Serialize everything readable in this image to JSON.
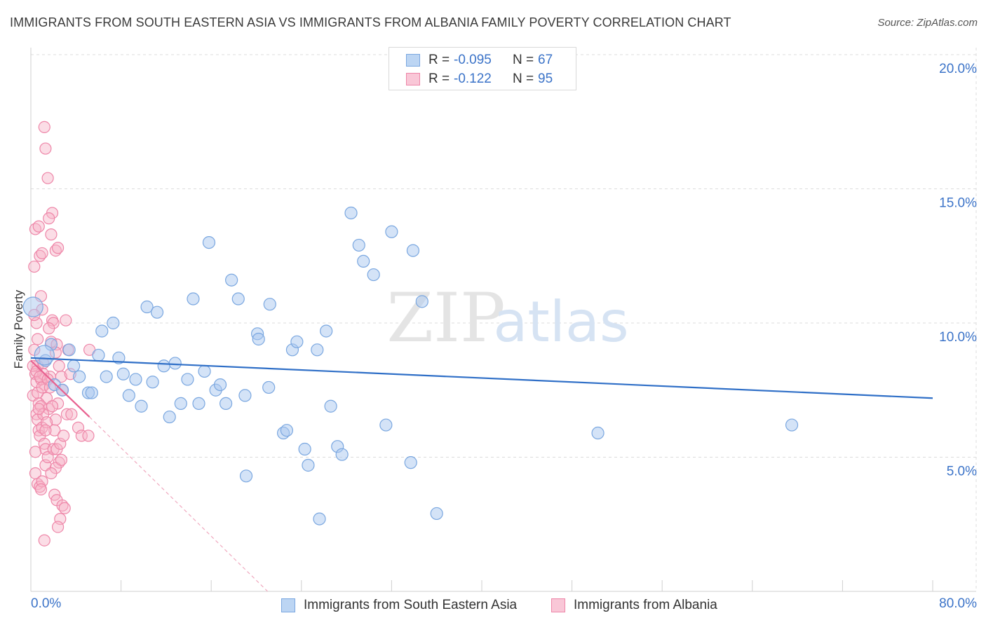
{
  "title": "IMMIGRANTS FROM SOUTH EASTERN ASIA VS IMMIGRANTS FROM ALBANIA FAMILY POVERTY CORRELATION CHART",
  "source": "Source: ZipAtlas.com",
  "watermark": {
    "zip": "ZIP",
    "atlas": "atlas"
  },
  "legend": {
    "rows": [
      {
        "r_label": "R =",
        "r_value": "-0.095",
        "n_label": "N =",
        "n_value": "67"
      },
      {
        "r_label": "R =",
        "r_value": "-0.122",
        "n_label": "N =",
        "n_value": "95"
      }
    ]
  },
  "bottom_legend": {
    "series1": "Immigrants from South Eastern Asia",
    "series2": "Immigrants from Albania"
  },
  "colors": {
    "blue_fill": "#a9c8ef",
    "blue_stroke": "#7aa7e0",
    "blue_line": "#2f6fc7",
    "pink_fill": "#f6b3c8",
    "pink_stroke": "#ee86a8",
    "pink_line": "#e8608f",
    "grid": "#dcdcdc",
    "axis_label": "#3b73c8"
  },
  "chart_data": {
    "type": "scatter",
    "title": "IMMIGRANTS FROM SOUTH EASTERN ASIA VS IMMIGRANTS FROM ALBANIA FAMILY POVERTY CORRELATION CHART",
    "xlabel": "",
    "ylabel": "Family Poverty",
    "xlim": [
      0,
      80
    ],
    "ylim": [
      0,
      20
    ],
    "x_tick_labels": [
      "0.0%",
      "80.0%"
    ],
    "y_ticks": [
      5,
      10,
      15,
      20
    ],
    "y_tick_labels": [
      "5.0%",
      "10.0%",
      "15.0%",
      "20.0%"
    ],
    "grid": "horizontal dashed",
    "legend_position": "top-center",
    "series": [
      {
        "name": "Immigrants from South Eastern Asia",
        "r": -0.095,
        "n": 67,
        "trend": {
          "x": [
            0,
            80
          ],
          "y": [
            8.7,
            7.2
          ]
        },
        "points": [
          [
            0.2,
            10.6
          ],
          [
            1.3,
            8.6
          ],
          [
            1.8,
            9.2
          ],
          [
            2.1,
            7.7
          ],
          [
            2.8,
            7.5
          ],
          [
            3.4,
            9.0
          ],
          [
            3.8,
            8.4
          ],
          [
            4.3,
            8.0
          ],
          [
            5.1,
            7.4
          ],
          [
            5.4,
            7.4
          ],
          [
            6.0,
            8.8
          ],
          [
            6.3,
            9.7
          ],
          [
            6.7,
            8.0
          ],
          [
            7.3,
            10.0
          ],
          [
            7.8,
            8.7
          ],
          [
            8.2,
            8.1
          ],
          [
            8.7,
            7.3
          ],
          [
            9.3,
            7.9
          ],
          [
            9.8,
            6.9
          ],
          [
            10.3,
            10.6
          ],
          [
            10.8,
            7.8
          ],
          [
            11.2,
            10.4
          ],
          [
            11.8,
            8.4
          ],
          [
            12.3,
            6.5
          ],
          [
            12.8,
            8.5
          ],
          [
            13.3,
            7.0
          ],
          [
            13.9,
            7.9
          ],
          [
            14.4,
            10.9
          ],
          [
            14.9,
            7.0
          ],
          [
            15.4,
            8.2
          ],
          [
            15.8,
            13.0
          ],
          [
            16.4,
            7.5
          ],
          [
            16.8,
            7.7
          ],
          [
            17.3,
            7.0
          ],
          [
            17.8,
            11.6
          ],
          [
            18.4,
            10.9
          ],
          [
            19.0,
            7.3
          ],
          [
            19.1,
            4.3
          ],
          [
            20.1,
            9.6
          ],
          [
            20.2,
            9.4
          ],
          [
            21.1,
            7.6
          ],
          [
            21.2,
            10.7
          ],
          [
            22.4,
            5.9
          ],
          [
            22.7,
            6.0
          ],
          [
            23.2,
            9.0
          ],
          [
            23.6,
            9.3
          ],
          [
            24.3,
            5.3
          ],
          [
            24.6,
            4.7
          ],
          [
            25.4,
            9.0
          ],
          [
            25.6,
            2.7
          ],
          [
            26.2,
            9.7
          ],
          [
            26.6,
            6.9
          ],
          [
            27.2,
            5.4
          ],
          [
            27.6,
            5.1
          ],
          [
            28.4,
            14.1
          ],
          [
            29.1,
            12.9
          ],
          [
            29.5,
            12.3
          ],
          [
            30.4,
            11.8
          ],
          [
            31.5,
            6.2
          ],
          [
            32.0,
            13.4
          ],
          [
            33.7,
            4.8
          ],
          [
            33.9,
            12.7
          ],
          [
            34.7,
            10.8
          ],
          [
            36.0,
            2.9
          ],
          [
            50.3,
            5.9
          ],
          [
            67.5,
            6.2
          ],
          [
            1.2,
            8.8
          ]
        ]
      },
      {
        "name": "Immigrants from Albania",
        "r": -0.122,
        "n": 95,
        "trend": {
          "x": [
            0,
            5.2
          ],
          "y": [
            8.6,
            6.5
          ]
        },
        "trend_extension": {
          "x": [
            5.2,
            21.0
          ],
          "y": [
            6.5,
            0.0
          ]
        },
        "points": [
          [
            0.3,
            12.1
          ],
          [
            0.4,
            13.5
          ],
          [
            0.5,
            10.0
          ],
          [
            0.6,
            8.4
          ],
          [
            0.7,
            13.6
          ],
          [
            0.8,
            12.5
          ],
          [
            0.9,
            11.0
          ],
          [
            1.0,
            10.5
          ],
          [
            1.1,
            8.5
          ],
          [
            1.2,
            7.7
          ],
          [
            0.2,
            7.3
          ],
          [
            0.5,
            6.6
          ],
          [
            0.6,
            6.4
          ],
          [
            0.7,
            6.0
          ],
          [
            0.8,
            5.8
          ],
          [
            1.0,
            6.1
          ],
          [
            1.2,
            5.5
          ],
          [
            1.3,
            4.7
          ],
          [
            0.4,
            4.4
          ],
          [
            0.6,
            4.0
          ],
          [
            0.8,
            3.9
          ],
          [
            1.0,
            4.1
          ],
          [
            1.3,
            5.3
          ],
          [
            1.5,
            5.0
          ],
          [
            1.6,
            6.8
          ],
          [
            1.4,
            7.2
          ],
          [
            1.7,
            8.0
          ],
          [
            1.8,
            9.3
          ],
          [
            1.9,
            10.1
          ],
          [
            2.0,
            10.0
          ],
          [
            2.2,
            12.7
          ],
          [
            2.4,
            12.8
          ],
          [
            1.8,
            13.3
          ],
          [
            1.9,
            14.1
          ],
          [
            1.6,
            13.9
          ],
          [
            1.5,
            15.4
          ],
          [
            1.3,
            16.5
          ],
          [
            1.2,
            17.3
          ],
          [
            2.3,
            9.2
          ],
          [
            2.5,
            8.4
          ],
          [
            2.7,
            8.0
          ],
          [
            2.8,
            7.5
          ],
          [
            2.4,
            7.0
          ],
          [
            2.2,
            6.4
          ],
          [
            2.1,
            6.0
          ],
          [
            2.0,
            5.3
          ],
          [
            2.3,
            5.3
          ],
          [
            2.5,
            4.8
          ],
          [
            2.6,
            5.5
          ],
          [
            2.2,
            4.6
          ],
          [
            2.1,
            3.6
          ],
          [
            2.3,
            3.4
          ],
          [
            2.6,
            2.7
          ],
          [
            2.8,
            3.2
          ],
          [
            2.4,
            2.4
          ],
          [
            3.0,
            3.1
          ],
          [
            3.1,
            10.1
          ],
          [
            3.3,
            9.0
          ],
          [
            3.5,
            8.1
          ],
          [
            3.2,
            6.6
          ],
          [
            3.6,
            6.6
          ],
          [
            4.2,
            6.1
          ],
          [
            4.5,
            5.8
          ],
          [
            5.1,
            5.8
          ],
          [
            5.2,
            9.0
          ],
          [
            0.3,
            9.0
          ],
          [
            0.4,
            8.1
          ],
          [
            0.5,
            7.8
          ],
          [
            0.6,
            7.4
          ],
          [
            0.7,
            7.0
          ],
          [
            0.9,
            6.9
          ],
          [
            1.1,
            6.6
          ],
          [
            1.4,
            6.3
          ],
          [
            0.9,
            7.9
          ],
          [
            1.1,
            8.1
          ],
          [
            0.2,
            8.4
          ],
          [
            1.2,
            1.9
          ],
          [
            0.5,
            8.2
          ],
          [
            0.8,
            8.0
          ],
          [
            1.0,
            7.6
          ],
          [
            1.5,
            7.9
          ],
          [
            1.7,
            7.6
          ],
          [
            1.3,
            6.0
          ],
          [
            0.4,
            5.2
          ],
          [
            1.9,
            6.9
          ],
          [
            2.9,
            5.8
          ],
          [
            0.6,
            9.4
          ],
          [
            1.6,
            9.8
          ],
          [
            2.2,
            8.9
          ],
          [
            0.3,
            10.3
          ],
          [
            1.0,
            12.6
          ],
          [
            0.7,
            6.8
          ],
          [
            1.8,
            4.4
          ],
          [
            2.7,
            4.9
          ],
          [
            0.9,
            3.8
          ]
        ]
      }
    ]
  }
}
